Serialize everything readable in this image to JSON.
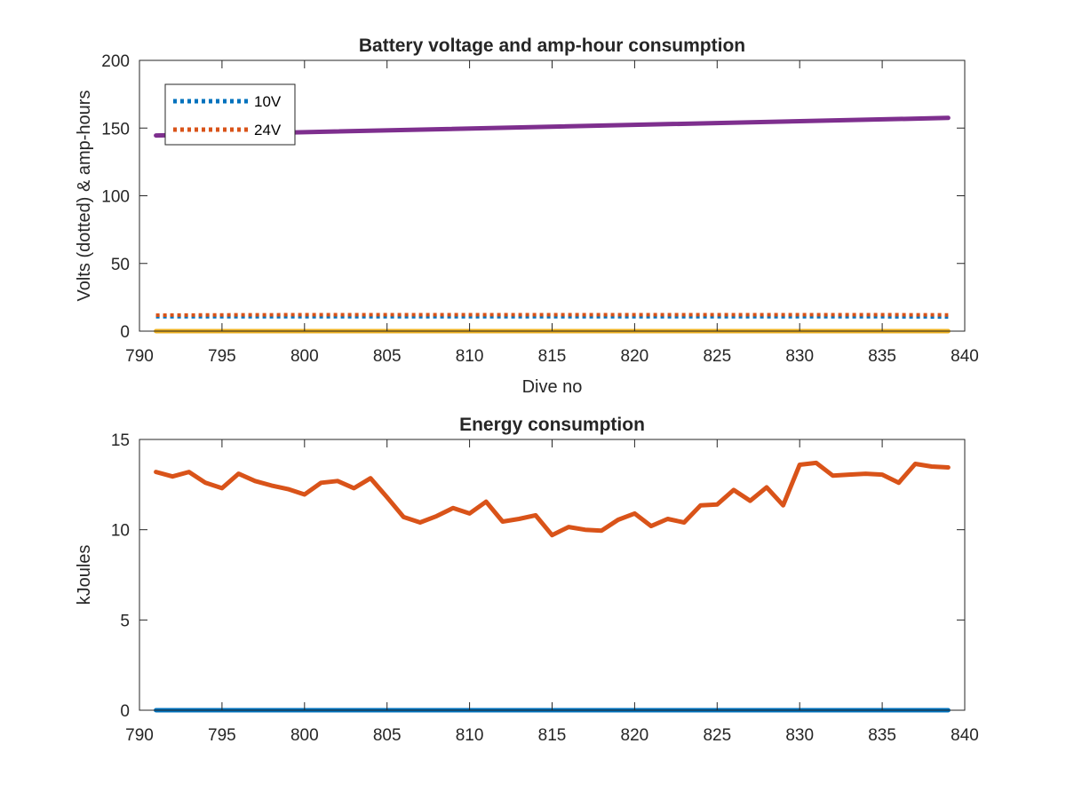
{
  "chart_data": [
    {
      "type": "line",
      "title": "Battery voltage and amp-hour consumption",
      "xlabel": "Dive no",
      "ylabel": "Volts (dotted) & amp-hours",
      "xlim": [
        790,
        840
      ],
      "ylim": [
        0,
        200
      ],
      "xticks": [
        "790",
        "795",
        "800",
        "805",
        "810",
        "815",
        "820",
        "825",
        "830",
        "835",
        "840"
      ],
      "yticks": [
        "0",
        "50",
        "100",
        "150",
        "200"
      ],
      "grid": false,
      "legend_position": "top-left",
      "series": [
        {
          "name": "10V",
          "style": "dotted",
          "color": "#0072BD",
          "x": [
            791,
            795,
            800,
            805,
            810,
            815,
            820,
            825,
            830,
            835,
            839
          ],
          "y": [
            10.6,
            10.6,
            10.7,
            10.6,
            10.6,
            10.6,
            10.6,
            10.6,
            10.6,
            10.6,
            10.5
          ]
        },
        {
          "name": "24V",
          "style": "dotted",
          "color": "#D95319",
          "x": [
            791,
            795,
            800,
            805,
            810,
            815,
            820,
            825,
            830,
            835,
            839
          ],
          "y": [
            11.8,
            12.0,
            12.1,
            12.1,
            12.1,
            12.1,
            12.1,
            12.1,
            12.1,
            12.1,
            12.0
          ]
        },
        {
          "style": "solid",
          "color": "#7E2F8E",
          "x": [
            791,
            839
          ],
          "y": [
            144.5,
            157.5
          ]
        },
        {
          "style": "solid",
          "color": "#EDB120",
          "x": [
            791,
            839
          ],
          "y": [
            0,
            0
          ]
        }
      ]
    },
    {
      "type": "line",
      "title": "Energy consumption",
      "xlabel": "",
      "ylabel": "kJoules",
      "xlim": [
        790,
        840
      ],
      "ylim": [
        0,
        15
      ],
      "xticks": [
        "790",
        "795",
        "800",
        "805",
        "810",
        "815",
        "820",
        "825",
        "830",
        "835",
        "840"
      ],
      "yticks": [
        "0",
        "5",
        "10",
        "15"
      ],
      "grid": false,
      "series": [
        {
          "style": "solid",
          "color": "#D95319",
          "x": [
            791,
            792,
            793,
            794,
            795,
            796,
            797,
            798,
            799,
            800,
            801,
            802,
            803,
            804,
            805,
            806,
            807,
            808,
            809,
            810,
            811,
            812,
            813,
            814,
            815,
            816,
            817,
            818,
            819,
            820,
            821,
            822,
            823,
            824,
            825,
            826,
            827,
            828,
            829,
            830,
            831,
            832,
            833,
            834,
            835,
            836,
            837,
            838,
            839
          ],
          "y": [
            13.2,
            12.95,
            13.2,
            12.6,
            12.3,
            13.1,
            12.7,
            12.45,
            12.25,
            11.95,
            12.6,
            12.7,
            12.3,
            12.85,
            11.8,
            10.7,
            10.4,
            10.75,
            11.2,
            10.9,
            11.55,
            10.45,
            10.6,
            10.8,
            9.7,
            10.15,
            10.0,
            9.95,
            10.55,
            10.9,
            10.2,
            10.6,
            10.4,
            11.35,
            11.4,
            12.2,
            11.6,
            12.35,
            11.35,
            13.6,
            13.7,
            13.0,
            13.05,
            13.1,
            13.05,
            12.6,
            13.65,
            13.5,
            13.45
          ]
        },
        {
          "style": "solid",
          "color": "#0072BD",
          "x": [
            791,
            839
          ],
          "y": [
            0,
            0
          ]
        }
      ]
    }
  ]
}
